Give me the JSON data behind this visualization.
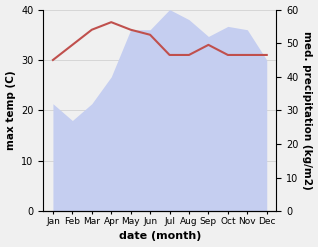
{
  "months": [
    "Jan",
    "Feb",
    "Mar",
    "Apr",
    "May",
    "Jun",
    "Jul",
    "Aug",
    "Sep",
    "Oct",
    "Nov",
    "Dec"
  ],
  "x": [
    0,
    1,
    2,
    3,
    4,
    5,
    6,
    7,
    8,
    9,
    10,
    11
  ],
  "temp": [
    30.0,
    33.0,
    36.0,
    37.5,
    36.0,
    35.0,
    31.0,
    31.0,
    33.0,
    31.0,
    31.0,
    31.0
  ],
  "precip": [
    32.0,
    27.0,
    32.0,
    40.0,
    54.0,
    54.0,
    60.0,
    57.0,
    52.0,
    55.0,
    54.0,
    45.0
  ],
  "temp_color": "#c0504d",
  "precip_color": "#aab4e8",
  "precip_fill_color": "#c5cef0",
  "temp_ylim": [
    0,
    40
  ],
  "precip_ylim": [
    0,
    60
  ],
  "temp_ylabel": "max temp (C)",
  "precip_ylabel": "med. precipitation (kg/m2)",
  "xlabel": "date (month)",
  "bg_color": "#f0f0f0",
  "grid_color": "#cccccc"
}
